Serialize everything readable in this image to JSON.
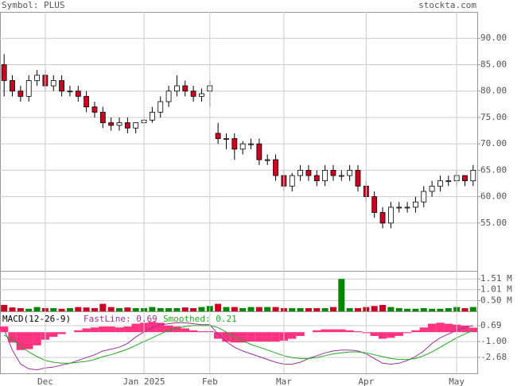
{
  "symbol_label": "Symbol: PLUS",
  "site": "stockta.com",
  "chart_data": [
    {
      "type": "candlestick",
      "ylim": [
        46.1,
        95
      ],
      "yticks": [
        {
          "value": 90,
          "label": "90.00"
        },
        {
          "value": 85,
          "label": "85.00"
        },
        {
          "value": 80,
          "label": "80.00"
        },
        {
          "value": 75,
          "label": "75.00"
        },
        {
          "value": 70,
          "label": "70.00"
        },
        {
          "value": 65,
          "label": "65.00"
        },
        {
          "value": 60,
          "label": "60.00"
        },
        {
          "value": 55,
          "label": "55.00"
        }
      ],
      "grid": true,
      "up_color": "#ffffff",
      "down_color": "#cc0022",
      "open": [
        85,
        82,
        80,
        79,
        82,
        83,
        81,
        82,
        80,
        80,
        79,
        77,
        76,
        74,
        73.5,
        74,
        73,
        74,
        74.5,
        76,
        78,
        80,
        81,
        80,
        79,
        80,
        72,
        71,
        71,
        69,
        70,
        70,
        67,
        67,
        64,
        62,
        64,
        65,
        64,
        63,
        65,
        64,
        64,
        65,
        62,
        60,
        57,
        55,
        58,
        58,
        58,
        59,
        61,
        62,
        63,
        63,
        64,
        63
      ],
      "high": [
        87,
        83,
        81,
        83,
        84,
        84,
        83,
        83,
        81,
        81,
        80,
        78,
        77,
        75,
        75,
        75,
        74,
        75.5,
        77,
        79,
        81,
        83,
        82,
        81,
        80.5,
        82,
        74,
        72,
        72,
        70.5,
        71,
        71,
        68,
        68,
        65,
        64.5,
        66,
        66,
        65,
        66,
        66,
        65,
        66,
        66,
        63,
        61,
        58,
        59,
        59,
        59,
        60,
        62,
        63,
        64,
        64,
        65,
        64,
        66
      ],
      "low": [
        79,
        79,
        78,
        78,
        81,
        80,
        80,
        79,
        79,
        78,
        76,
        75,
        73,
        72.5,
        72.5,
        72,
        72,
        73,
        74,
        75,
        77,
        79,
        79,
        78,
        78,
        77,
        70,
        69,
        67,
        68,
        69,
        66,
        66,
        63,
        61,
        61,
        63,
        63,
        62,
        62,
        63,
        63,
        63,
        61,
        59,
        56,
        54,
        54,
        57,
        57,
        57,
        58,
        60,
        61,
        62,
        62,
        62,
        62
      ],
      "close": [
        82,
        80,
        79,
        82,
        83,
        81,
        82,
        80,
        80,
        79,
        77,
        76,
        74,
        73.5,
        74,
        73,
        74,
        74.5,
        76,
        78,
        80,
        81,
        80,
        79,
        79.5,
        81,
        71,
        71,
        69,
        70,
        70,
        67,
        67,
        64,
        62,
        64,
        65,
        64,
        63,
        65,
        64,
        64,
        65,
        62,
        60,
        57,
        55,
        58,
        58,
        58,
        59,
        61,
        62,
        63,
        63,
        64,
        63,
        65
      ]
    },
    {
      "type": "bar",
      "ylim": [
        0,
        1.85
      ],
      "yticks": [
        {
          "value": 1.51,
          "label": "1.51 M"
        },
        {
          "value": 1.01,
          "label": "1.01 M"
        },
        {
          "value": 0.5,
          "label": "0.50 M"
        }
      ],
      "grid": true,
      "up_color": "#008800",
      "down_color": "#cc0022",
      "values": [
        0.3,
        0.18,
        0.15,
        0.12,
        0.2,
        0.15,
        0.15,
        0.12,
        0.15,
        0.2,
        0.18,
        0.15,
        0.35,
        0.2,
        0.15,
        0.18,
        0.15,
        0.15,
        0.2,
        0.15,
        0.15,
        0.15,
        0.18,
        0.15,
        0.2,
        0.25,
        0.35,
        0.2,
        0.2,
        0.15,
        0.2,
        0.2,
        0.2,
        0.2,
        0.15,
        0.15,
        0.15,
        0.15,
        0.15,
        0.15,
        0.2,
        1.51,
        0.15,
        0.15,
        0.2,
        0.25,
        0.3,
        0.2,
        0.15,
        0.12,
        0.12,
        0.15,
        0.12,
        0.12,
        0.15,
        0.2,
        0.15,
        0.2
      ]
    },
    {
      "type": "macd",
      "title": "MACD(12-26-9)",
      "ylim": [
        -4.37,
        2.13
      ],
      "yticks": [
        0.69,
        {
          "value": -1,
          "label": "-1.00"
        },
        -2.68
      ],
      "grid": true,
      "categories": [
        null,
        null,
        null,
        null,
        null,
        "Dec",
        null,
        null,
        null,
        null,
        null,
        null,
        null,
        null,
        null,
        null,
        null,
        "Jan 2025",
        null,
        null,
        null,
        null,
        null,
        null,
        null,
        "Feb",
        null,
        null,
        null,
        null,
        null,
        null,
        null,
        null,
        "Mar",
        null,
        null,
        null,
        null,
        null,
        null,
        null,
        null,
        null,
        "Apr",
        null,
        null,
        null,
        null,
        null,
        null,
        null,
        null,
        null,
        null,
        "May",
        null,
        null
      ],
      "histogram_color": "#ff3380",
      "histogram": [
        0.6,
        -1.1,
        -1.9,
        -1.8,
        -1.4,
        -0.8,
        -0.5,
        -0.2,
        0,
        0.2,
        0.4,
        0.5,
        0.6,
        0.6,
        0.5,
        0.6,
        0.9,
        1.0,
        1.1,
        1.0,
        0.7,
        0.6,
        0.4,
        0.2,
        0.1,
        0.1,
        -0.7,
        -1.0,
        -1.1,
        -1.1,
        -1.0,
        -1.0,
        -1.0,
        -1.0,
        -0.9,
        -0.7,
        -0.4,
        0,
        0.2,
        0.3,
        0.3,
        0.3,
        0.2,
        0.1,
        -0.1,
        -0.4,
        -0.7,
        -0.6,
        -0.4,
        -0.1,
        0.2,
        0.5,
        0.9,
        1.0,
        0.9,
        0.8,
        0.7,
        0.48
      ],
      "series": [
        {
          "name": "FastLine: 0.69",
          "color": "#993399",
          "values": [
            0.3,
            -1.9,
            -3.4,
            -3.9,
            -4.0,
            -3.8,
            -3.7,
            -3.5,
            -3.3,
            -3.0,
            -2.7,
            -2.4,
            -2.0,
            -1.8,
            -1.6,
            -1.2,
            -0.5,
            0.0,
            0.5,
            0.8,
            0.9,
            1.0,
            1.0,
            0.9,
            0.8,
            0.8,
            -0.2,
            -1.0,
            -1.6,
            -2.0,
            -2.3,
            -2.6,
            -2.9,
            -3.2,
            -3.4,
            -3.4,
            -3.2,
            -2.8,
            -2.5,
            -2.2,
            -2.0,
            -1.9,
            -1.9,
            -2.0,
            -2.3,
            -2.8,
            -3.3,
            -3.4,
            -3.3,
            -3.0,
            -2.6,
            -2.0,
            -1.2,
            -0.6,
            -0.2,
            0.2,
            0.5,
            0.69
          ]
        },
        {
          "name": "Smoothed: 0.21",
          "color": "#22aa22",
          "values": [
            -0.3,
            -0.8,
            -1.5,
            -2.1,
            -2.6,
            -3.0,
            -3.2,
            -3.3,
            -3.3,
            -3.2,
            -3.1,
            -2.9,
            -2.6,
            -2.4,
            -2.1,
            -1.8,
            -1.4,
            -1.0,
            -0.6,
            -0.2,
            0.2,
            0.4,
            0.6,
            0.7,
            0.7,
            0.7,
            0.5,
            0.0,
            -0.5,
            -0.9,
            -1.3,
            -1.6,
            -1.9,
            -2.2,
            -2.5,
            -2.7,
            -2.8,
            -2.8,
            -2.7,
            -2.5,
            -2.3,
            -2.2,
            -2.1,
            -2.1,
            -2.2,
            -2.4,
            -2.6,
            -2.8,
            -2.9,
            -2.9,
            -2.8,
            -2.5,
            -2.1,
            -1.6,
            -1.1,
            -0.6,
            -0.2,
            0.21
          ]
        }
      ]
    }
  ]
}
